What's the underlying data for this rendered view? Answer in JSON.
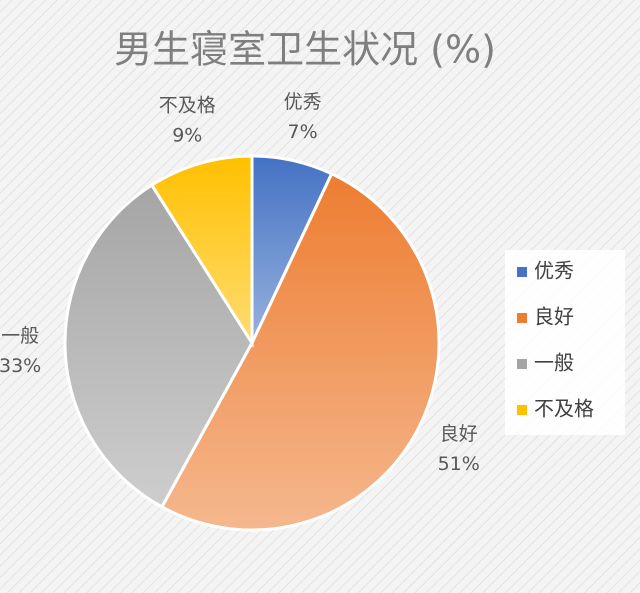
{
  "chart_data": {
    "type": "pie",
    "title": "男生寝室卫生状况 (%)",
    "categories": [
      "优秀",
      "良好",
      "一般",
      "不及格"
    ],
    "values": [
      7,
      51,
      33,
      9
    ],
    "value_labels": [
      "7%",
      "51%",
      "33%",
      "9%"
    ],
    "colors": [
      "#4472c4",
      "#ed7d31",
      "#a5a5a5",
      "#ffc000"
    ],
    "legend": "right"
  }
}
